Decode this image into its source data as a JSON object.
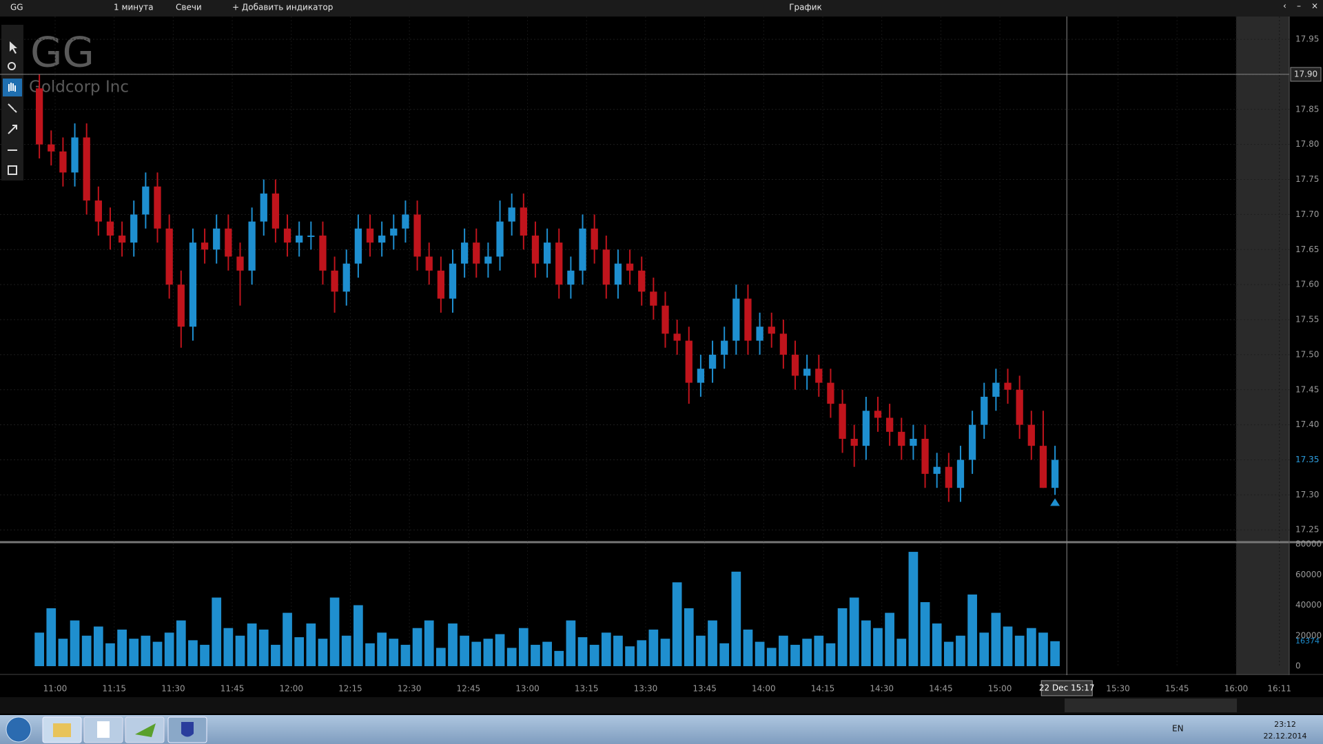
{
  "toolbar": {
    "symbol": "GG",
    "interval": "1 минута",
    "style": "Свечи",
    "add_indicator": "+ Добавить индикатор",
    "window_title": "График"
  },
  "chart_data": {
    "type": "candlestick",
    "title": "GG",
    "subtitle": "Goldcorp Inc",
    "up_color": "#1e8fd0",
    "down_color": "#c0141c",
    "grid": true,
    "x": [
      656,
      659,
      662,
      665,
      668,
      671,
      674,
      677,
      680,
      683,
      686,
      689,
      692,
      695,
      698,
      701,
      704,
      707,
      710,
      713,
      716,
      719,
      722,
      725,
      728,
      731,
      734,
      737,
      740,
      743,
      746,
      749,
      752,
      755,
      758,
      761,
      764,
      767,
      770,
      773,
      776,
      779,
      782,
      785,
      788,
      791,
      794,
      797,
      800,
      803,
      806,
      809,
      812,
      815,
      818,
      821,
      824,
      827,
      830,
      833,
      836,
      839,
      842,
      845,
      848,
      851,
      854,
      857,
      860,
      863,
      866,
      869,
      872,
      875,
      878,
      881,
      884,
      887,
      890,
      893,
      896,
      899,
      902,
      905,
      908,
      911,
      914
    ],
    "open": [
      17.88,
      17.8,
      17.79,
      17.76,
      17.81,
      17.72,
      17.69,
      17.67,
      17.66,
      17.7,
      17.74,
      17.68,
      17.6,
      17.54,
      17.66,
      17.65,
      17.68,
      17.64,
      17.62,
      17.69,
      17.73,
      17.68,
      17.66,
      17.67,
      17.67,
      17.62,
      17.59,
      17.63,
      17.68,
      17.66,
      17.67,
      17.68,
      17.7,
      17.64,
      17.62,
      17.58,
      17.63,
      17.66,
      17.63,
      17.64,
      17.69,
      17.71,
      17.67,
      17.63,
      17.66,
      17.6,
      17.62,
      17.68,
      17.65,
      17.6,
      17.63,
      17.62,
      17.59,
      17.57,
      17.53,
      17.52,
      17.46,
      17.48,
      17.5,
      17.52,
      17.58,
      17.52,
      17.54,
      17.53,
      17.5,
      17.47,
      17.48,
      17.46,
      17.43,
      17.38,
      17.37,
      17.42,
      17.41,
      17.39,
      17.37,
      17.38,
      17.33,
      17.34,
      17.31,
      17.35,
      17.4,
      17.44,
      17.46,
      17.45,
      17.4,
      17.37,
      17.31
    ],
    "high": [
      17.9,
      17.82,
      17.81,
      17.83,
      17.83,
      17.74,
      17.71,
      17.69,
      17.72,
      17.76,
      17.76,
      17.7,
      17.62,
      17.68,
      17.68,
      17.7,
      17.7,
      17.66,
      17.71,
      17.75,
      17.75,
      17.7,
      17.69,
      17.69,
      17.69,
      17.64,
      17.65,
      17.7,
      17.7,
      17.69,
      17.7,
      17.72,
      17.72,
      17.66,
      17.64,
      17.65,
      17.68,
      17.68,
      17.66,
      17.72,
      17.73,
      17.73,
      17.69,
      17.68,
      17.68,
      17.64,
      17.7,
      17.7,
      17.67,
      17.65,
      17.65,
      17.64,
      17.61,
      17.59,
      17.55,
      17.54,
      17.5,
      17.52,
      17.54,
      17.6,
      17.6,
      17.56,
      17.56,
      17.55,
      17.52,
      17.5,
      17.5,
      17.48,
      17.45,
      17.4,
      17.44,
      17.44,
      17.43,
      17.41,
      17.4,
      17.4,
      17.36,
      17.36,
      17.37,
      17.42,
      17.46,
      17.48,
      17.48,
      17.47,
      17.42,
      17.42,
      17.37
    ],
    "low": [
      17.78,
      17.77,
      17.74,
      17.74,
      17.7,
      17.67,
      17.65,
      17.64,
      17.64,
      17.68,
      17.66,
      17.58,
      17.51,
      17.52,
      17.63,
      17.63,
      17.62,
      17.57,
      17.6,
      17.67,
      17.66,
      17.64,
      17.64,
      17.65,
      17.6,
      17.56,
      17.57,
      17.61,
      17.64,
      17.64,
      17.65,
      17.66,
      17.62,
      17.6,
      17.56,
      17.56,
      17.61,
      17.61,
      17.61,
      17.62,
      17.67,
      17.65,
      17.61,
      17.61,
      17.58,
      17.58,
      17.6,
      17.63,
      17.58,
      17.58,
      17.6,
      17.57,
      17.55,
      17.51,
      17.5,
      17.43,
      17.44,
      17.46,
      17.48,
      17.5,
      17.5,
      17.5,
      17.51,
      17.48,
      17.45,
      17.45,
      17.44,
      17.41,
      17.36,
      17.34,
      17.35,
      17.39,
      17.37,
      17.35,
      17.35,
      17.31,
      17.31,
      17.29,
      17.29,
      17.33,
      17.38,
      17.42,
      17.43,
      17.38,
      17.35,
      17.31,
      17.3
    ],
    "close": [
      17.8,
      17.79,
      17.76,
      17.81,
      17.72,
      17.69,
      17.67,
      17.66,
      17.7,
      17.74,
      17.68,
      17.6,
      17.54,
      17.66,
      17.65,
      17.68,
      17.64,
      17.62,
      17.69,
      17.73,
      17.68,
      17.66,
      17.67,
      17.67,
      17.62,
      17.59,
      17.63,
      17.68,
      17.66,
      17.67,
      17.68,
      17.7,
      17.64,
      17.62,
      17.58,
      17.63,
      17.66,
      17.63,
      17.64,
      17.69,
      17.71,
      17.67,
      17.63,
      17.66,
      17.6,
      17.62,
      17.68,
      17.65,
      17.6,
      17.63,
      17.62,
      17.59,
      17.57,
      17.53,
      17.52,
      17.46,
      17.48,
      17.5,
      17.52,
      17.58,
      17.52,
      17.54,
      17.53,
      17.5,
      17.47,
      17.48,
      17.46,
      17.43,
      17.38,
      17.37,
      17.42,
      17.41,
      17.39,
      17.37,
      17.38,
      17.33,
      17.34,
      17.31,
      17.35,
      17.4,
      17.44,
      17.46,
      17.45,
      17.4,
      17.37,
      17.31,
      17.35
    ],
    "xlim": [
      646,
      973.5
    ],
    "ylim": [
      17.2355,
      17.9825
    ],
    "xticks": [
      {
        "value": 660,
        "label": "11:00"
      },
      {
        "value": 675,
        "label": "11:15"
      },
      {
        "value": 690,
        "label": "11:30"
      },
      {
        "value": 705,
        "label": "11:45"
      },
      {
        "value": 720,
        "label": "12:00"
      },
      {
        "value": 735,
        "label": "12:15"
      },
      {
        "value": 750,
        "label": "12:30"
      },
      {
        "value": 765,
        "label": "12:45"
      },
      {
        "value": 780,
        "label": "13:00"
      },
      {
        "value": 795,
        "label": "13:15"
      },
      {
        "value": 810,
        "label": "13:30"
      },
      {
        "value": 825,
        "label": "13:45"
      },
      {
        "value": 840,
        "label": "14:00"
      },
      {
        "value": 855,
        "label": "14:15"
      },
      {
        "value": 870,
        "label": "14:30"
      },
      {
        "value": 885,
        "label": "14:45"
      },
      {
        "value": 900,
        "label": "15:00"
      },
      {
        "value": 930,
        "label": "15:30"
      },
      {
        "value": 945,
        "label": "15:45"
      },
      {
        "value": 960,
        "label": "16:00"
      },
      {
        "value": 971,
        "label": "16:11"
      }
    ],
    "yticks": [
      {
        "value": 17.25,
        "label": "17.25"
      },
      {
        "value": 17.3,
        "label": "17.30"
      },
      {
        "value": 17.35,
        "label": "17.35"
      },
      {
        "value": 17.4,
        "label": "17.40"
      },
      {
        "value": 17.45,
        "label": "17.45"
      },
      {
        "value": 17.5,
        "label": "17.50"
      },
      {
        "value": 17.55,
        "label": "17.55"
      },
      {
        "value": 17.6,
        "label": "17.60"
      },
      {
        "value": 17.65,
        "label": "17.65"
      },
      {
        "value": 17.7,
        "label": "17.70"
      },
      {
        "value": 17.75,
        "label": "17.75"
      },
      {
        "value": 17.8,
        "label": "17.80"
      },
      {
        "value": 17.85,
        "label": "17.85"
      },
      {
        "value": 17.9,
        "label": "17.90"
      },
      {
        "value": 17.95,
        "label": "17.95"
      }
    ],
    "crosshair": {
      "x": {
        "value": 917,
        "label": "22 Dec 15:17"
      },
      "y": {
        "value": 17.9,
        "label": "17.90"
      }
    },
    "volume": {
      "color": "#1f8fcf",
      "ylim": [
        0,
        80000
      ],
      "yticks": [
        0,
        20000,
        40000,
        60000,
        80000
      ],
      "values": [
        22000,
        38000,
        18000,
        30000,
        20000,
        26000,
        15000,
        24000,
        18000,
        20000,
        16000,
        22000,
        30000,
        17000,
        14000,
        45000,
        25000,
        20000,
        28000,
        24000,
        14000,
        35000,
        19000,
        28000,
        18000,
        45000,
        20000,
        40000,
        15000,
        22000,
        18000,
        14000,
        25000,
        30000,
        12000,
        28000,
        20000,
        16000,
        18000,
        21000,
        12000,
        25000,
        14000,
        16000,
        10000,
        30000,
        19000,
        14000,
        22000,
        20000,
        13000,
        17000,
        24000,
        18000,
        55000,
        38000,
        20000,
        30000,
        15000,
        62000,
        24000,
        16000,
        12000,
        20000,
        14000,
        18000,
        20000,
        15000,
        38000,
        45000,
        30000,
        25000,
        35000,
        18000,
        75000,
        42000,
        28000,
        16000,
        20000,
        47000,
        22000,
        35000,
        26000,
        20000,
        25000,
        22000,
        16374
      ]
    }
  },
  "taskbar": {
    "language": "EN",
    "time": "23:12",
    "date": "22.12.2014"
  }
}
